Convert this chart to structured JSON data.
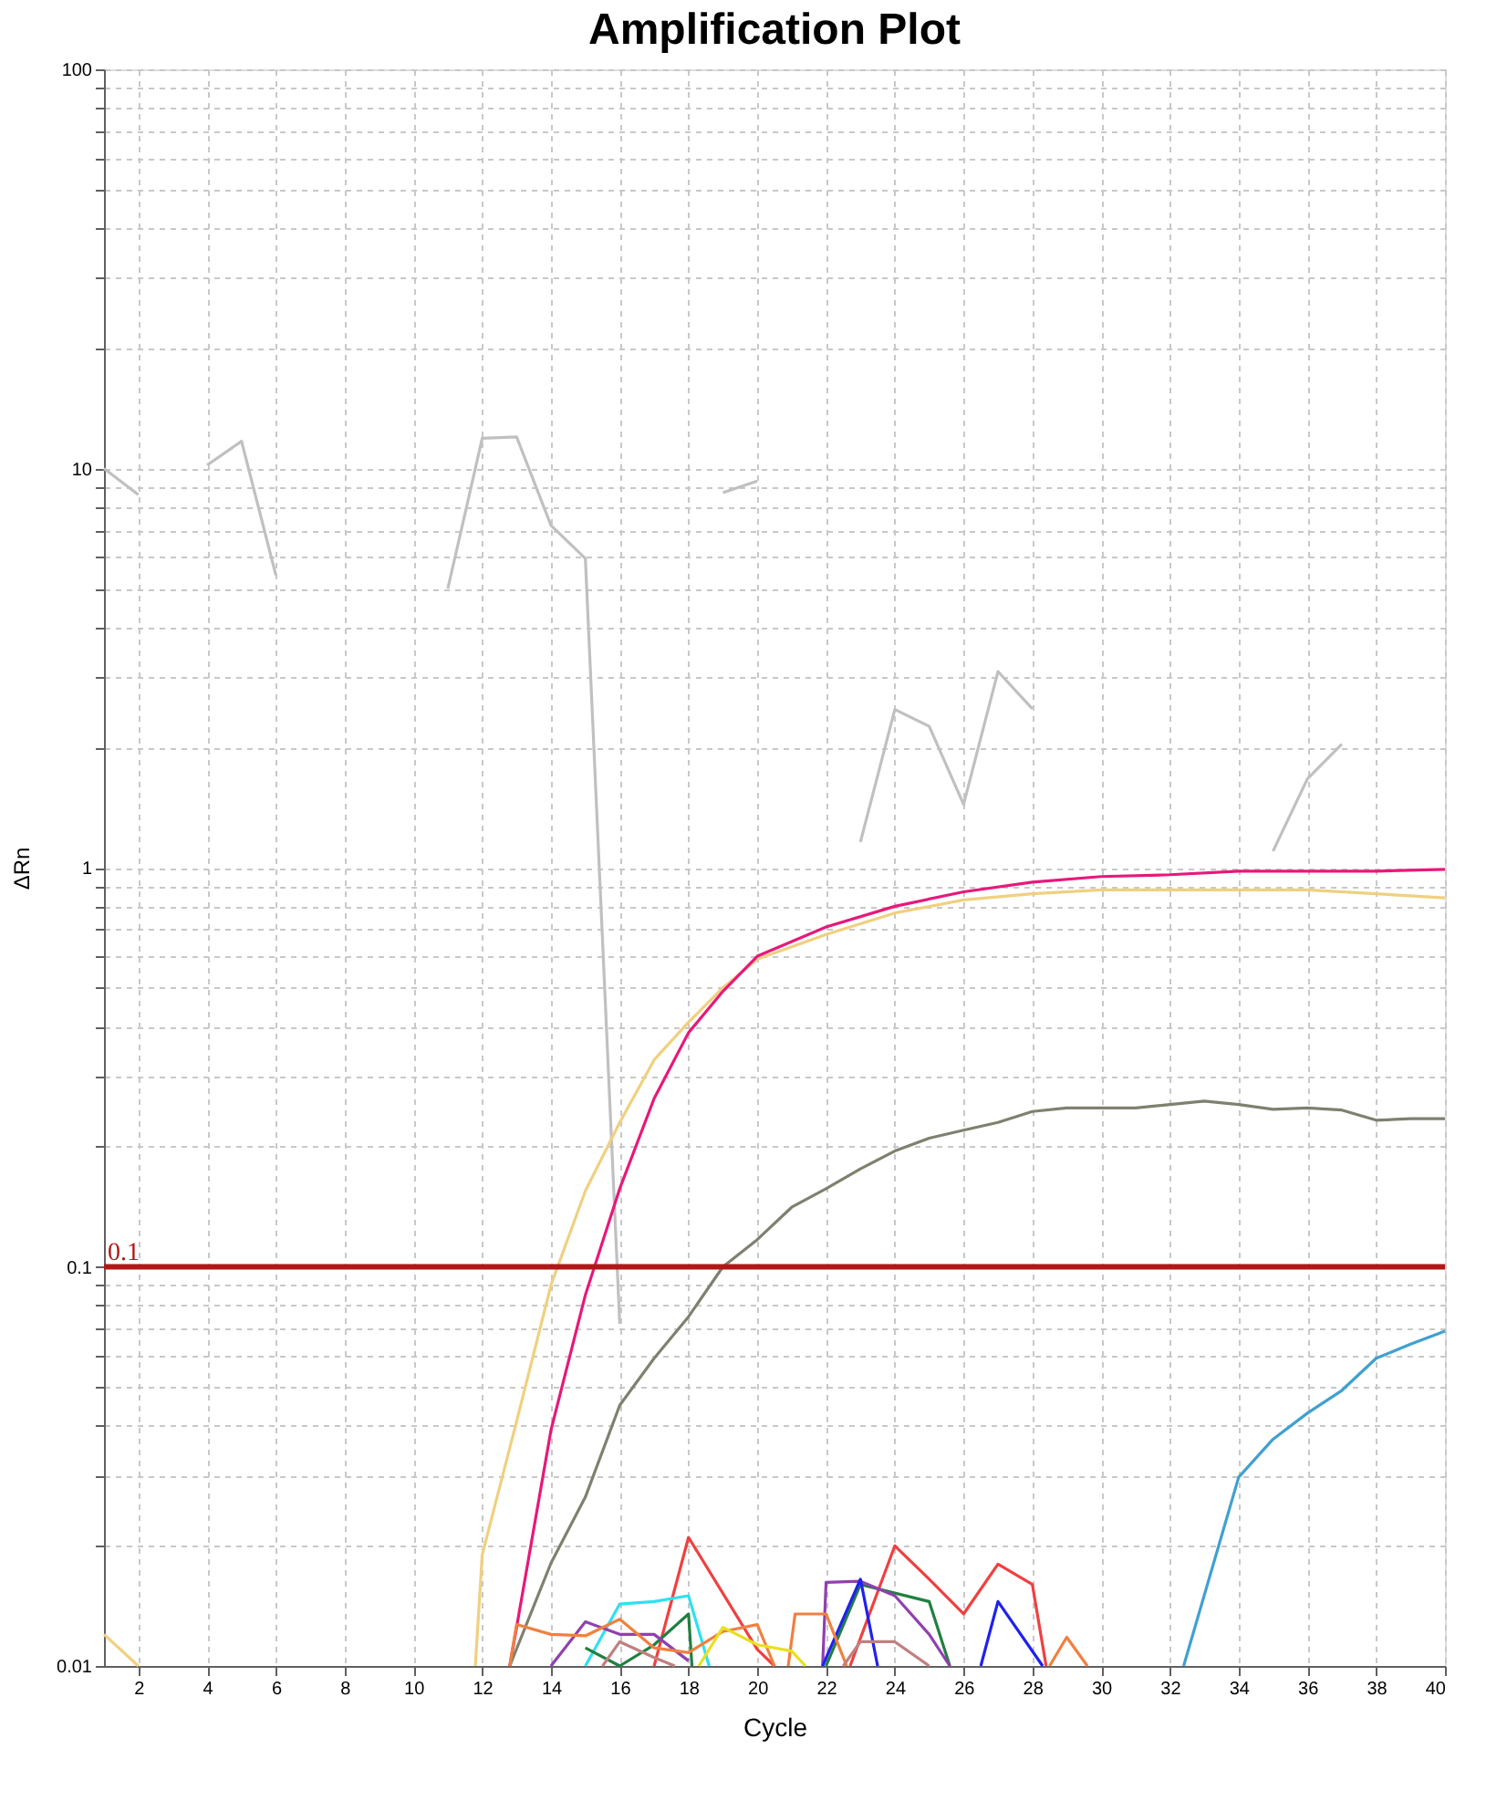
{
  "chart_data": {
    "type": "line",
    "title": "Amplification Plot",
    "xlabel": "Cycle",
    "ylabel": "ΔRn",
    "log": "y",
    "grid": true,
    "marker": "none",
    "line_style": "solid",
    "xlim": [
      1,
      40
    ],
    "xticks": [
      2,
      4,
      6,
      8,
      10,
      12,
      14,
      16,
      18,
      20,
      22,
      24,
      26,
      28,
      30,
      32,
      34,
      36,
      38,
      40
    ],
    "ylim": [
      0.01,
      100
    ],
    "yticks": [
      0.01,
      {
        "value": 0.02,
        "label": null
      },
      {
        "value": 0.03,
        "label": null
      },
      {
        "value": 0.04,
        "label": null
      },
      {
        "value": 0.05,
        "label": null
      },
      {
        "value": 0.06,
        "label": null
      },
      {
        "value": 0.07,
        "label": null
      },
      {
        "value": 0.08,
        "label": null
      },
      {
        "value": 0.09,
        "label": null
      },
      0.1,
      {
        "value": 0.2,
        "label": null
      },
      {
        "value": 0.3,
        "label": null
      },
      {
        "value": 0.4,
        "label": null
      },
      {
        "value": 0.5,
        "label": null
      },
      {
        "value": 0.6,
        "label": null
      },
      {
        "value": 0.7,
        "label": null
      },
      {
        "value": 0.8,
        "label": null
      },
      {
        "value": 0.9,
        "label": null
      },
      1,
      {
        "value": 2,
        "label": null
      },
      {
        "value": 3,
        "label": null
      },
      {
        "value": 4,
        "label": null
      },
      {
        "value": 5,
        "label": null
      },
      {
        "value": 6,
        "label": null
      },
      {
        "value": 7,
        "label": null
      },
      {
        "value": 8,
        "label": null
      },
      {
        "value": 9,
        "label": null
      },
      10,
      {
        "value": 20,
        "label": null
      },
      {
        "value": 30,
        "label": null
      },
      {
        "value": 40,
        "label": null
      },
      {
        "value": 50,
        "label": null
      },
      {
        "value": 60,
        "label": null
      },
      {
        "value": 70,
        "label": null
      },
      {
        "value": 80,
        "label": null
      },
      {
        "value": 90,
        "label": null
      },
      100
    ],
    "ref_lines": [
      {
        "axis": "y",
        "value": 0.1,
        "label": "0.1",
        "color": "#b01818"
      }
    ],
    "series": [
      {
        "color": "#c0c0c0",
        "x": [
          1,
          2,
          3,
          4,
          5,
          6,
          7,
          11,
          12,
          13,
          14,
          15,
          16,
          17,
          19,
          20,
          21,
          23,
          24,
          25,
          26,
          27,
          28,
          29,
          35,
          36,
          37
        ],
        "values": [
          10.0,
          8.6,
          null,
          10.2,
          11.7,
          5.4,
          null,
          5.0,
          11.9,
          12.0,
          7.2,
          5.95,
          0.072,
          null,
          8.7,
          9.3,
          null,
          1.16,
          2.49,
          2.26,
          1.44,
          3.1,
          2.5,
          null,
          1.1,
          1.67,
          2.04
        ]
      },
      {
        "color": "#f0d080",
        "x": [
          1,
          2,
          3,
          11.8,
          12,
          13,
          14,
          15,
          16,
          17,
          18,
          19,
          20,
          22,
          24,
          26,
          28,
          30,
          32,
          34,
          36,
          38,
          40
        ],
        "values": [
          0.012,
          0.01,
          null,
          0.01,
          0.019,
          0.041,
          0.09,
          0.155,
          0.23,
          0.33,
          0.41,
          0.5,
          0.59,
          0.68,
          0.77,
          0.83,
          0.86,
          0.88,
          0.88,
          0.88,
          0.88,
          0.86,
          0.84
        ]
      },
      {
        "color": "#e8187a",
        "x": [
          12.8,
          13,
          14,
          15,
          16,
          17,
          18,
          19,
          20,
          22,
          24,
          26,
          28,
          30,
          32,
          34,
          36,
          38,
          40
        ],
        "values": [
          0.01,
          0.0125,
          0.039,
          0.085,
          0.157,
          0.264,
          0.386,
          0.49,
          0.6,
          0.71,
          0.8,
          0.87,
          0.92,
          0.95,
          0.96,
          0.98,
          0.98,
          0.98,
          0.99
        ]
      },
      {
        "color": "#808070",
        "x": [
          12.8,
          14,
          15,
          16,
          17,
          18,
          19,
          20,
          21,
          22,
          23,
          24,
          25,
          26,
          27,
          28,
          29,
          30,
          31,
          32,
          33,
          34,
          35,
          36,
          37,
          38,
          39,
          40
        ],
        "values": [
          0.01,
          0.0181,
          0.0265,
          0.045,
          0.059,
          0.075,
          0.1,
          0.117,
          0.141,
          0.157,
          0.176,
          0.195,
          0.21,
          0.22,
          0.23,
          0.245,
          0.25,
          0.25,
          0.25,
          0.255,
          0.26,
          0.255,
          0.248,
          0.25,
          0.247,
          0.233,
          0.235,
          0.235
        ]
      },
      {
        "color": "#40a0d0",
        "x": [
          32.4,
          34,
          35,
          36,
          37,
          38,
          39,
          40
        ],
        "values": [
          0.01,
          0.0297,
          0.037,
          0.043,
          0.049,
          0.059,
          0.064,
          0.069
        ]
      },
      {
        "color": "#f04040",
        "x": [
          17,
          18,
          20,
          20.5,
          21,
          22.7,
          24,
          25,
          26,
          27,
          28,
          28.4
        ],
        "values": [
          0.01,
          0.021,
          0.011,
          0.01,
          null,
          0.01,
          0.02,
          0.0165,
          0.0135,
          0.018,
          0.016,
          0.01
        ]
      },
      {
        "color": "#30e0f0",
        "x": [
          15,
          16,
          17,
          18,
          18.6
        ],
        "values": [
          0.01,
          0.0143,
          0.0145,
          0.015,
          0.01
        ]
      },
      {
        "color": "#208040",
        "x": [
          15,
          16,
          17,
          18,
          18.1,
          20,
          22,
          23,
          25,
          25.6
        ],
        "values": [
          0.0111,
          0.01,
          0.0113,
          0.0135,
          0.01,
          null,
          0.01,
          0.016,
          0.0145,
          0.01
        ]
      },
      {
        "color": "#9040b0",
        "x": [
          14,
          15,
          16,
          17,
          18,
          19,
          21.9,
          22,
          23,
          24,
          25,
          25.6
        ],
        "values": [
          0.01,
          0.0129,
          0.012,
          0.012,
          0.0103,
          null,
          0.01,
          0.0162,
          0.0163,
          0.015,
          0.012,
          0.01
        ]
      },
      {
        "color": "#2020f0",
        "x": [
          21.9,
          23,
          23.5,
          25,
          26.5,
          27,
          28.3
        ],
        "values": [
          0.01,
          0.0165,
          0.01,
          null,
          0.01,
          0.0145,
          0.01
        ]
      },
      {
        "color": "#f08040",
        "x": [
          12.8,
          13,
          14,
          15,
          16,
          17,
          18,
          19,
          20,
          20.5,
          20.7,
          20.9,
          21.1,
          22,
          22.6,
          24,
          28.5,
          29,
          29.6
        ],
        "values": [
          0.01,
          0.0127,
          0.012,
          0.0119,
          0.0131,
          0.0111,
          0.0108,
          0.0122,
          0.0127,
          0.01,
          null,
          0.01,
          0.0135,
          0.0135,
          0.01,
          null,
          0.01,
          0.0118,
          0.01
        ]
      },
      {
        "color": "#e8e020",
        "x": [
          18.3,
          19,
          20,
          21,
          21.4
        ],
        "values": [
          0.01,
          0.0125,
          0.0113,
          0.0109,
          0.01
        ]
      },
      {
        "color": "#c08080",
        "x": [
          15.5,
          16,
          17,
          17.6,
          20,
          22.5,
          23,
          24,
          25
        ],
        "values": [
          0.01,
          0.0115,
          0.0105,
          0.01,
          null,
          0.01,
          0.0115,
          0.0115,
          0.01
        ]
      }
    ]
  }
}
